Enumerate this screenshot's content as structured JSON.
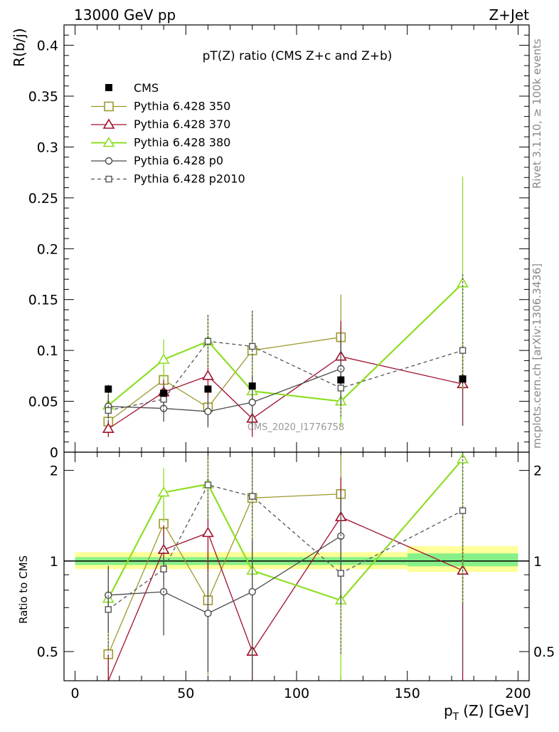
{
  "header": {
    "left": "13000 GeV pp",
    "right": "Z+Jet"
  },
  "side": {
    "rivet": "Rivet 3.1.10, ≥ 100k events",
    "mcplots": "mcplots.cern.ch [arXiv:1306.3436]"
  },
  "chart_data": {
    "type": "line",
    "title": "pT(Z) ratio (CMS  Z+c and Z+b)",
    "watermark": "CMS_2020_I1776758",
    "ylabel": "R(b/j)",
    "ratio_ylabel": "Ratio to CMS",
    "xlabel": "p_T (Z) [GeV]",
    "xlabel_main": "p",
    "xlabel_sub": "T",
    "xlabel_rest": "(Z) [GeV]",
    "xlim": [
      -5,
      205
    ],
    "ylim": [
      0,
      0.42
    ],
    "ratio_ylim": [
      0.4,
      2.3
    ],
    "x_ticks": [
      "0",
      "50",
      "100",
      "150",
      "200"
    ],
    "y_ticks": [
      "0",
      "0.05",
      "0.1",
      "0.15",
      "0.2",
      "0.25",
      "0.3",
      "0.35",
      "0.4"
    ],
    "ratio_ticks": [
      "0.5",
      "1",
      "2"
    ],
    "x": [
      15,
      40,
      60,
      80,
      120,
      175
    ],
    "data": {
      "name": "CMS",
      "values": [
        0.062,
        0.058,
        0.062,
        0.065,
        0.071,
        0.072
      ],
      "errors": [
        0.004,
        0.003,
        0.003,
        0.003,
        0.004,
        0.005
      ]
    },
    "cms_bands": [
      {
        "x0": 0,
        "x1": 150,
        "inner": [
          0.97,
          1.03
        ],
        "outer": [
          0.94,
          1.07
        ]
      },
      {
        "x0": 150,
        "x1": 200,
        "inner": [
          0.96,
          1.06
        ],
        "outer": [
          0.92,
          1.12
        ]
      }
    ],
    "series": [
      {
        "name": "Pythia 6.428 350",
        "color": "#9c9a2c",
        "marker": "square-open",
        "dash": false,
        "values": [
          0.03,
          0.071,
          0.044,
          0.1,
          0.113,
          null
        ],
        "errors": [
          0.01,
          0.015,
          0.02,
          0.039,
          0.042,
          null
        ],
        "ratio": [
          0.49,
          1.33,
          0.74,
          1.62,
          1.67,
          null
        ]
      },
      {
        "name": "Pythia 6.428 370",
        "color": "#a0102c",
        "marker": "triangle-open",
        "dash": false,
        "values": [
          0.023,
          0.059,
          0.075,
          0.033,
          0.094,
          0.067
        ],
        "errors": [
          0.008,
          0.013,
          0.02,
          0.018,
          0.035,
          0.041
        ],
        "ratio": [
          0.36,
          1.09,
          1.24,
          0.5,
          1.4,
          0.93
        ]
      },
      {
        "name": "Pythia 6.428 380",
        "color": "#8ede24",
        "marker": "triangle-open",
        "dash": false,
        "values": [
          0.046,
          0.091,
          0.109,
          0.06,
          0.05,
          0.166
        ],
        "errors": [
          0.013,
          0.02,
          0.026,
          0.03,
          0.025,
          0.105
        ],
        "ratio": [
          0.75,
          1.69,
          1.8,
          0.93,
          0.74,
          2.18
        ]
      },
      {
        "name": "Pythia 6.428 p0",
        "color": "#4a4a4a",
        "marker": "circle-open",
        "dash": false,
        "values": [
          0.045,
          0.043,
          0.04,
          0.049,
          0.082,
          null
        ],
        "errors": [
          0.012,
          0.013,
          0.015,
          0.025,
          0.035,
          null
        ],
        "ratio": [
          0.77,
          0.79,
          0.67,
          0.79,
          1.21,
          null
        ]
      },
      {
        "name": "Pythia 6.428 p2010",
        "color": "#555555",
        "marker": "square-open-small",
        "dash": true,
        "values": [
          0.041,
          0.052,
          0.109,
          0.104,
          0.063,
          0.1
        ],
        "errors": [
          0.012,
          0.015,
          0.026,
          0.035,
          0.03,
          0.075
        ],
        "ratio": [
          0.69,
          0.94,
          1.79,
          1.64,
          0.91,
          1.47
        ]
      }
    ]
  }
}
